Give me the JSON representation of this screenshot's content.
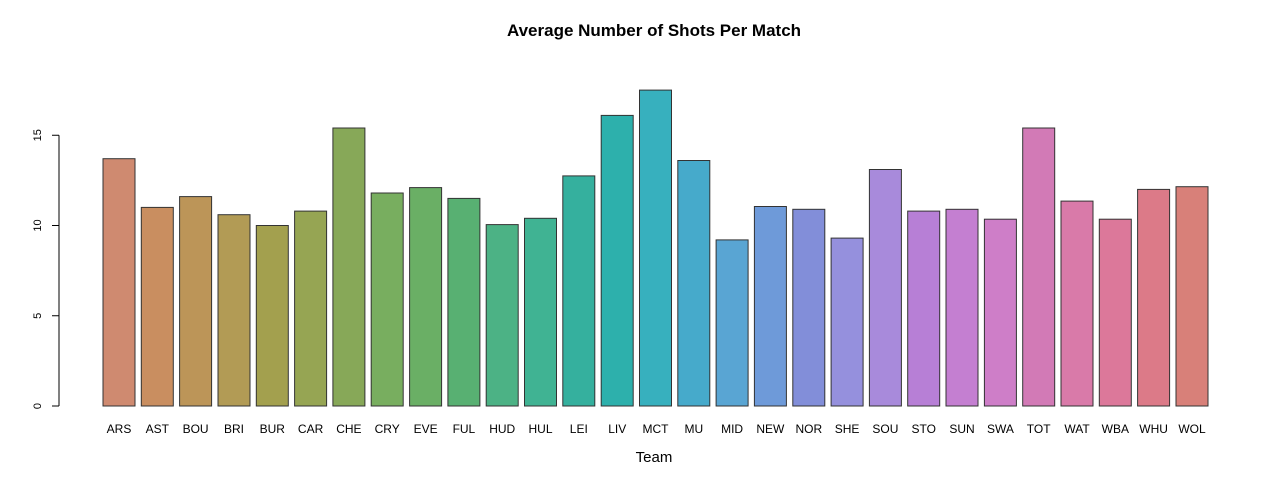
{
  "chart_data": {
    "type": "bar",
    "title": "Average Number of Shots Per Match",
    "xlabel": "Team",
    "ylabel": "",
    "ylim": [
      0,
      17.5
    ],
    "yticks": [
      0,
      5,
      10,
      15
    ],
    "grid": false,
    "legend": "none",
    "categories": [
      "ARS",
      "AST",
      "BOU",
      "BRI",
      "BUR",
      "CAR",
      "CHE",
      "CRY",
      "EVE",
      "FUL",
      "HUD",
      "HUL",
      "LEI",
      "LIV",
      "MCT",
      "MU",
      "MID",
      "NEW",
      "NOR",
      "SHE",
      "SOU",
      "STO",
      "SUN",
      "SWA",
      "TOT",
      "WAT",
      "WBA",
      "WHU",
      "WOL"
    ],
    "values": [
      13.7,
      11.0,
      11.6,
      10.6,
      10.0,
      10.8,
      15.4,
      11.8,
      12.1,
      11.5,
      10.05,
      10.4,
      12.75,
      16.1,
      17.5,
      13.6,
      9.2,
      11.05,
      10.9,
      9.3,
      13.1,
      10.8,
      10.9,
      10.35,
      15.4,
      11.35,
      10.35,
      12.0,
      12.15
    ],
    "colors": [
      "#cf8a70",
      "#c98e60",
      "#bc9558",
      "#b29b55",
      "#a3a04e",
      "#96a553",
      "#87a858",
      "#78ae5f",
      "#6aaf65",
      "#58b072",
      "#4cb285",
      "#40b393",
      "#35b09e",
      "#2db0ac",
      "#37b0be",
      "#46aacb",
      "#59a5d3",
      "#6e9ad9",
      "#828ed9",
      "#9590dd",
      "#a88adb",
      "#b77fd6",
      "#c47fd1",
      "#ce7ec8",
      "#d27ab6",
      "#d97aa9",
      "#dc789a",
      "#dc7a88",
      "#d88079"
    ]
  }
}
